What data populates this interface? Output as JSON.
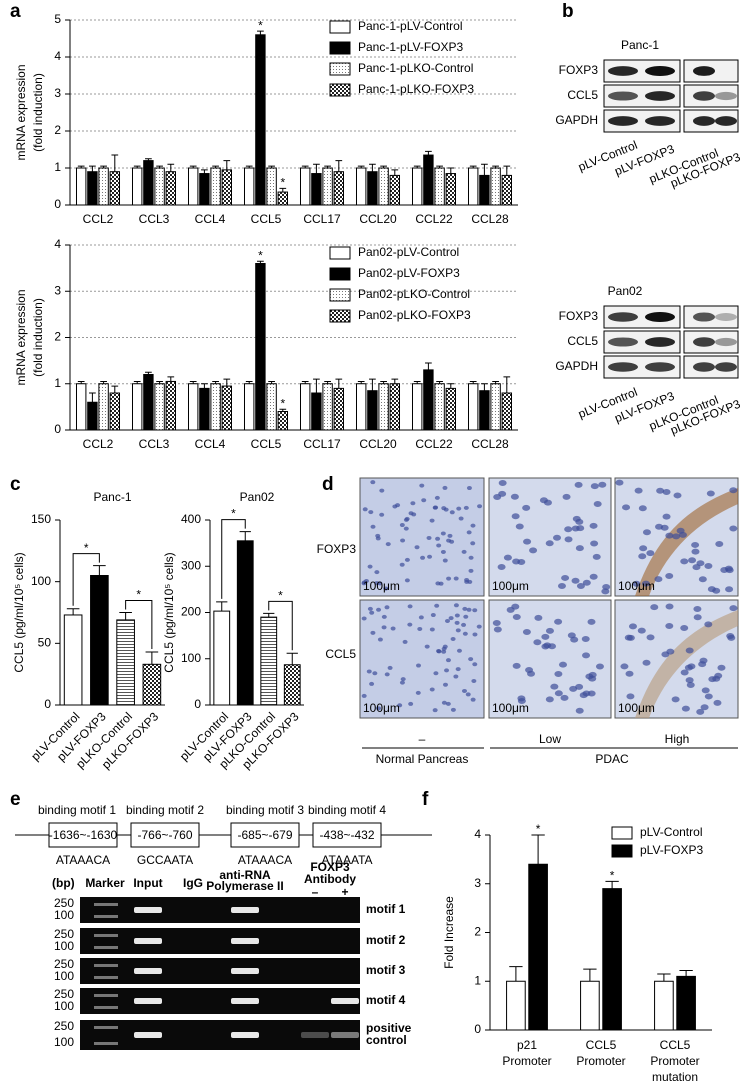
{
  "panel_labels": [
    "a",
    "b",
    "c",
    "d",
    "e",
    "f"
  ],
  "chart_data": [
    {
      "type": "bar",
      "ylabel": [
        "mRNA expression",
        "(fold induction)"
      ],
      "ylim": [
        0,
        5
      ],
      "yticks": [
        0,
        1,
        2,
        3,
        4,
        5
      ],
      "grid": true,
      "categories": [
        "CCL2",
        "CCL3",
        "CCL4",
        "CCL5",
        "CCL17",
        "CCL20",
        "CCL22",
        "CCL28"
      ],
      "series": [
        {
          "name": "Panc-1-pLV-Control",
          "color": "#ffffff",
          "values": [
            1,
            1,
            1,
            1,
            1,
            1,
            1,
            1
          ],
          "errors": [
            0.05,
            0.05,
            0.05,
            0.05,
            0.05,
            0.05,
            0.05,
            0.05
          ]
        },
        {
          "name": "Panc-1-pLV-FOXP3",
          "color": "#000000",
          "values": [
            0.9,
            1.2,
            0.85,
            4.6,
            0.85,
            0.9,
            1.35,
            0.8
          ],
          "errors": [
            0.15,
            0.05,
            0.1,
            0.1,
            0.25,
            0.2,
            0.1,
            0.3
          ]
        },
        {
          "name": "Panc-1-pLKO-Control",
          "color": "#ffffff",
          "pattern": "dots",
          "values": [
            1,
            1,
            1,
            1,
            1,
            1,
            1,
            1
          ],
          "errors": [
            0.05,
            0.05,
            0.05,
            0.05,
            0.05,
            0.05,
            0.05,
            0.05
          ]
        },
        {
          "name": "Panc-1-pLKO-FOXP3",
          "color": "#000000",
          "pattern": "checker",
          "values": [
            0.9,
            0.9,
            0.95,
            0.35,
            0.9,
            0.8,
            0.85,
            0.8
          ],
          "errors": [
            0.45,
            0.2,
            0.25,
            0.1,
            0.3,
            0.15,
            0.15,
            0.25
          ]
        }
      ],
      "annotations": [
        {
          "text": "*",
          "category": "CCL5",
          "series": "Panc-1-pLV-FOXP3"
        },
        {
          "text": "*",
          "category": "CCL5",
          "series": "Panc-1-pLKO-FOXP3"
        }
      ]
    },
    {
      "type": "bar",
      "ylabel": [
        "mRNA expression",
        "(fold induction)"
      ],
      "ylim": [
        0,
        4
      ],
      "yticks": [
        0,
        1,
        2,
        3,
        4
      ],
      "grid": true,
      "categories": [
        "CCL2",
        "CCL3",
        "CCL4",
        "CCL5",
        "CCL17",
        "CCL20",
        "CCL22",
        "CCL28"
      ],
      "series": [
        {
          "name": "Pan02-pLV-Control",
          "color": "#ffffff",
          "values": [
            1,
            1,
            1,
            1,
            1,
            1,
            1,
            1
          ],
          "errors": [
            0.05,
            0.05,
            0.05,
            0.05,
            0.05,
            0.05,
            0.05,
            0.05
          ]
        },
        {
          "name": "Pan02-pLV-FOXP3",
          "color": "#000000",
          "values": [
            0.6,
            1.2,
            0.9,
            3.6,
            0.8,
            0.85,
            1.3,
            0.85
          ],
          "errors": [
            0.2,
            0.05,
            0.1,
            0.05,
            0.3,
            0.25,
            0.15,
            0.15
          ]
        },
        {
          "name": "Pan02-pLKO-Control",
          "color": "#ffffff",
          "pattern": "dots",
          "values": [
            1,
            1,
            1,
            1,
            1,
            1,
            1,
            1
          ],
          "errors": [
            0.05,
            0.05,
            0.05,
            0.05,
            0.05,
            0.05,
            0.05,
            0.05
          ]
        },
        {
          "name": "Pan02-pLKO-FOXP3",
          "color": "#000000",
          "pattern": "checker",
          "values": [
            0.8,
            1.05,
            0.95,
            0.4,
            0.9,
            1.0,
            0.9,
            0.8
          ],
          "errors": [
            0.15,
            0.1,
            0.15,
            0.05,
            0.2,
            0.1,
            0.1,
            0.35
          ]
        }
      ],
      "annotations": [
        {
          "text": "*",
          "category": "CCL5",
          "series": "Pan02-pLV-FOXP3"
        },
        {
          "text": "*",
          "category": "CCL5",
          "series": "Pan02-pLKO-FOXP3"
        }
      ]
    },
    {
      "type": "bar",
      "title": "Panc-1",
      "ylabel": "CCL5 (pg/ml/10⁵ cells)",
      "ylim": [
        0,
        150
      ],
      "yticks": [
        0,
        50,
        100,
        150
      ],
      "grid": false,
      "categories": [
        "pLV-Control",
        "pLV-FOXP3",
        "pLKO-Control",
        "pLKO-FOXP3"
      ],
      "series": [
        {
          "colors": [
            "#ffffff",
            "#000000",
            "#ffffff",
            "#ffffff"
          ],
          "patterns": [
            null,
            null,
            "hlines",
            "checker"
          ],
          "values": [
            73,
            105,
            69,
            33
          ],
          "errors": [
            5,
            8,
            6,
            10
          ]
        }
      ],
      "annotations": [
        {
          "text": "*",
          "categories": [
            "pLV-Control",
            "pLV-FOXP3"
          ]
        },
        {
          "text": "*",
          "categories": [
            "pLKO-Control",
            "pLKO-FOXP3"
          ]
        }
      ]
    },
    {
      "type": "bar",
      "title": "Pan02",
      "ylabel": "CCL5 (pg/ml/10⁵ cells)",
      "ylim": [
        0,
        400
      ],
      "yticks": [
        0,
        100,
        200,
        300,
        400
      ],
      "grid": false,
      "categories": [
        "pLV-Control",
        "pLV-FOXP3",
        "pLKO-Control",
        "pLKO-FOXP3"
      ],
      "series": [
        {
          "colors": [
            "#ffffff",
            "#000000",
            "#ffffff",
            "#ffffff"
          ],
          "patterns": [
            null,
            null,
            "hlines",
            "checker"
          ],
          "values": [
            203,
            355,
            190,
            87
          ],
          "errors": [
            20,
            20,
            8,
            25
          ]
        }
      ],
      "annotations": [
        {
          "text": "*",
          "categories": [
            "pLV-Control",
            "pLV-FOXP3"
          ]
        },
        {
          "text": "*",
          "categories": [
            "pLKO-Control",
            "pLKO-FOXP3"
          ]
        }
      ]
    },
    {
      "type": "bar",
      "ylabel": "Fold Increase",
      "ylim": [
        0,
        4
      ],
      "yticks": [
        0,
        1,
        2,
        3,
        4
      ],
      "grid": false,
      "categories": [
        [
          "p21",
          "Promoter"
        ],
        [
          "CCL5",
          "Promoter"
        ],
        [
          "CCL5",
          "Promoter",
          "mutation"
        ]
      ],
      "series": [
        {
          "name": "pLV-Control",
          "color": "#ffffff",
          "values": [
            1,
            1,
            1
          ],
          "errors": [
            0.3,
            0.25,
            0.15
          ]
        },
        {
          "name": "pLV-FOXP3",
          "color": "#000000",
          "values": [
            3.4,
            2.9,
            1.1
          ],
          "errors": [
            0.6,
            0.15,
            0.12
          ]
        }
      ],
      "annotations": [
        {
          "text": "*",
          "category": [
            "p21",
            "Promoter"
          ],
          "series": "pLV-FOXP3"
        },
        {
          "text": "*",
          "category": [
            "CCL5",
            "Promoter"
          ],
          "series": "pLV-FOXP3"
        }
      ]
    }
  ],
  "blots": [
    {
      "title": "Panc-1",
      "rows": [
        "FOXP3",
        "CCL5",
        "GAPDH"
      ],
      "lanes": [
        "pLV-Control",
        "pLV-FOXP3",
        "pLKO-Control",
        "pLKO-FOXP3"
      ]
    },
    {
      "title": "Pan02",
      "rows": [
        "FOXP3",
        "CCL5",
        "GAPDH"
      ],
      "lanes": [
        "pLV-Control",
        "pLV-FOXP3",
        "pLKO-Control",
        "pLKO-FOXP3"
      ]
    }
  ],
  "histology": {
    "rows": [
      "FOXP3",
      "CCL5"
    ],
    "columns": [
      "–",
      "Low",
      "High"
    ],
    "groups": [
      "Normal Pancreas",
      "PDAC"
    ],
    "scale": "100μm"
  },
  "motifs": [
    {
      "label": "binding motif 1",
      "position": "-1636~-1630",
      "sequence": "ATAAACA"
    },
    {
      "label": "binding motif 2",
      "position": "-766~-760",
      "sequence": "GCCAATA"
    },
    {
      "label": "binding motif 3",
      "position": "-685~-679",
      "sequence": "ATAAACA"
    },
    {
      "label": "binding motif 4",
      "position": "-438~-432",
      "sequence": "ATAAATA"
    }
  ],
  "gel": {
    "unit": "(bp)",
    "lanes": [
      [
        "Marker"
      ],
      [
        "Input"
      ],
      [
        "IgG"
      ],
      [
        "anti-RNA",
        "Polymerase II"
      ],
      [
        "FOXP3",
        "Antibody"
      ]
    ],
    "antibody_lanes": [
      "–",
      "+"
    ],
    "sizes": [
      250,
      100
    ],
    "rows": [
      [
        "motif 1"
      ],
      [
        "motif 2"
      ],
      [
        "motif 3"
      ],
      [
        "motif 4"
      ],
      [
        "positive",
        "control"
      ]
    ]
  }
}
